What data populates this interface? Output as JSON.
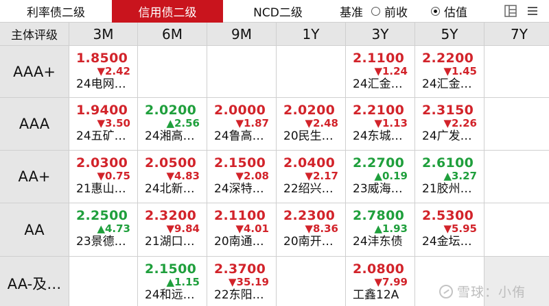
{
  "tabs": [
    {
      "label": "利率债二级",
      "active": false
    },
    {
      "label": "信用债二级",
      "active": true
    },
    {
      "label": "NCD二级",
      "active": false
    }
  ],
  "basis": {
    "label": "基准",
    "options": [
      {
        "label": "前收",
        "selected": false
      },
      {
        "label": "估值",
        "selected": true
      }
    ]
  },
  "toolbar_icons": [
    "layout-icon",
    "menu-icon"
  ],
  "colors": {
    "accent": "#c9141d",
    "up": "#d2232a",
    "down": "#1f9f3c"
  },
  "table": {
    "corner_label": "主体评级",
    "columns": [
      "3M",
      "6M",
      "9M",
      "1Y",
      "3Y",
      "5Y",
      "7Y"
    ],
    "rows": [
      {
        "label": "AAA+",
        "cells": [
          {
            "value": "1.8500",
            "change": "▼2.42",
            "name": "24电网…",
            "color": "red"
          },
          null,
          null,
          null,
          {
            "value": "2.1100",
            "change": "▼1.24",
            "name": "24汇金…",
            "color": "red"
          },
          {
            "value": "2.2200",
            "change": "▼1.45",
            "name": "24汇金…",
            "color": "red"
          },
          null
        ]
      },
      {
        "label": "AAA",
        "cells": [
          {
            "value": "1.9400",
            "change": "▼3.50",
            "name": "24五矿…",
            "color": "red"
          },
          {
            "value": "2.0200",
            "change": "▲2.56",
            "name": "24湘高…",
            "color": "green"
          },
          {
            "value": "2.0000",
            "change": "▼1.87",
            "name": "24鲁高…",
            "color": "red"
          },
          {
            "value": "2.0200",
            "change": "▼2.48",
            "name": "20民生…",
            "color": "red"
          },
          {
            "value": "2.2100",
            "change": "▼1.13",
            "name": "24东城…",
            "color": "red"
          },
          {
            "value": "2.3150",
            "change": "▼2.26",
            "name": "24广发…",
            "color": "red"
          },
          null
        ]
      },
      {
        "label": "AA+",
        "cells": [
          {
            "value": "2.0300",
            "change": "▼0.75",
            "name": "21惠山…",
            "color": "red"
          },
          {
            "value": "2.0500",
            "change": "▼4.83",
            "name": "24北新…",
            "color": "red"
          },
          {
            "value": "2.1500",
            "change": "▼2.08",
            "name": "24深特…",
            "color": "red"
          },
          {
            "value": "2.0400",
            "change": "▼2.17",
            "name": "22绍兴…",
            "color": "red"
          },
          {
            "value": "2.2700",
            "change": "▲0.19",
            "name": "23威海…",
            "color": "green"
          },
          {
            "value": "2.6100",
            "change": "▲3.27",
            "name": "21胶州…",
            "color": "green"
          },
          null
        ]
      },
      {
        "label": "AA",
        "cells": [
          {
            "value": "2.2500",
            "change": "▲4.73",
            "name": "23景德…",
            "color": "green"
          },
          {
            "value": "2.3200",
            "change": "▼9.84",
            "name": "21湖口…",
            "color": "red"
          },
          {
            "value": "2.1100",
            "change": "▼4.01",
            "name": "20南通…",
            "color": "red"
          },
          {
            "value": "2.2300",
            "change": "▼8.36",
            "name": "20南开…",
            "color": "red"
          },
          {
            "value": "2.7800",
            "change": "▲1.93",
            "name": "24沣东债",
            "color": "green"
          },
          {
            "value": "2.5300",
            "change": "▼5.95",
            "name": "24金坛…",
            "color": "red"
          },
          null
        ]
      },
      {
        "label": "AA-及…",
        "cells": [
          null,
          {
            "value": "2.1500",
            "change": "▲1.15",
            "name": "24和远…",
            "color": "green"
          },
          {
            "value": "2.3700",
            "change": "▼35.19",
            "name": "22东阳…",
            "color": "red"
          },
          null,
          {
            "value": "2.0800",
            "change": "▼7.99",
            "name": "工鑫12A",
            "color": "red"
          },
          null,
          "gray"
        ]
      }
    ]
  },
  "watermark": "雪球：小侑"
}
